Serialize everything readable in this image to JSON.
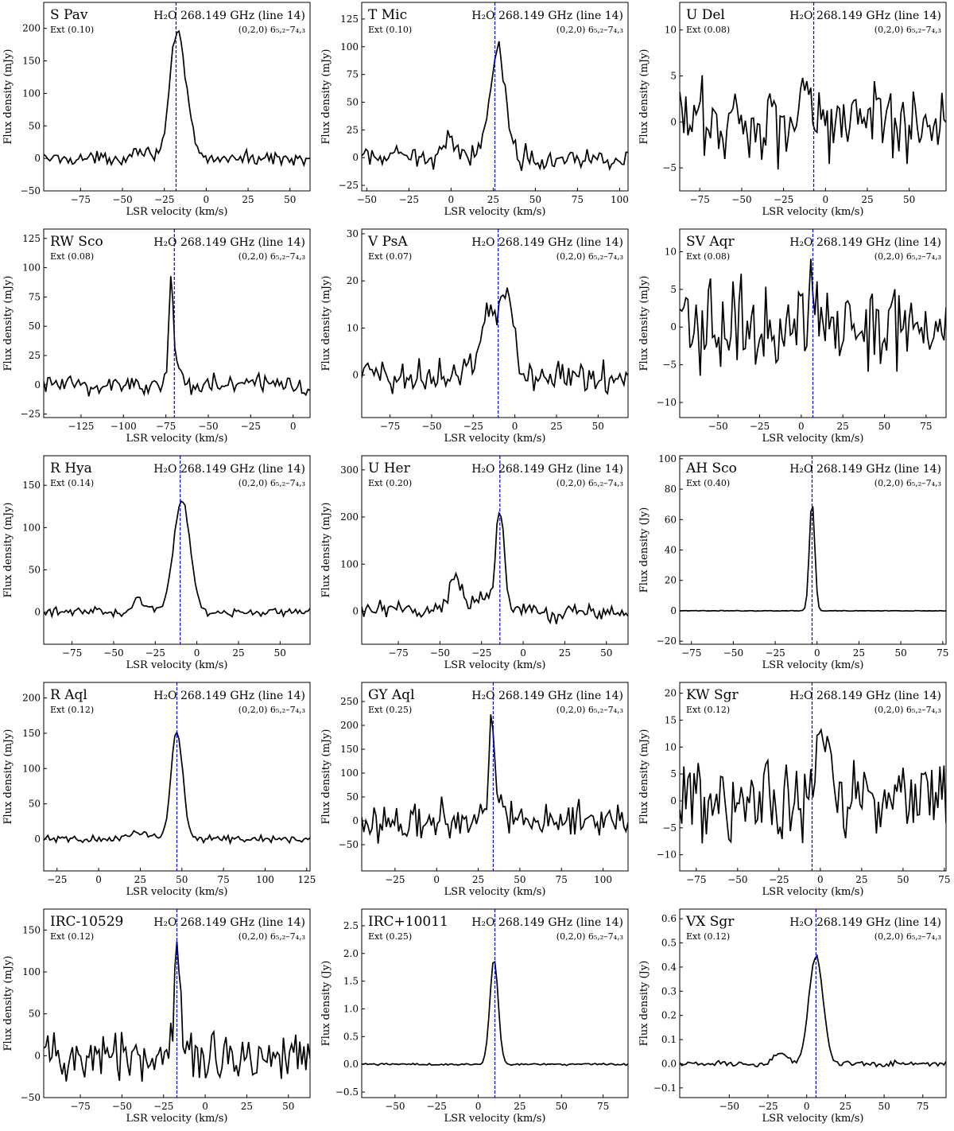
{
  "line_title": "H₂O 268.149 GHz (line 14)",
  "transition": "(0,2,0) 6₅,₂–7₄,₃",
  "xlabel": "LSR velocity (km/s)",
  "colors": {
    "spectrum": "#000000",
    "vsys_line": "#0000ff"
  },
  "chart_data": [
    {
      "type": "line",
      "star": "S Pav",
      "ext": "Ext (0.10)",
      "ylabel": "Flux density (mJy)",
      "xlim": [
        -97,
        62
      ],
      "ylim": [
        -50,
        240
      ],
      "xticks": [
        -75,
        -50,
        -25,
        0,
        25,
        50
      ],
      "yticks": [
        -50,
        0,
        50,
        100,
        150,
        200
      ],
      "vsys": -18,
      "noise": 5,
      "components": [
        [
          -18,
          4,
          170,
          -21,
          1.5
        ],
        [
          -12,
          4,
          60
        ],
        [
          -40,
          4,
          15
        ],
        [
          -30,
          3,
          8
        ]
      ]
    },
    {
      "type": "line",
      "star": "T Mic",
      "ext": "Ext (0.10)",
      "ylabel": "Flux density (mJy)",
      "xlim": [
        -53,
        105
      ],
      "ylim": [
        -30,
        140
      ],
      "xticks": [
        -50,
        -25,
        0,
        25,
        50,
        75,
        100
      ],
      "yticks": [
        -25,
        0,
        25,
        50,
        75,
        100,
        125
      ],
      "vsys": 26,
      "noise": 5,
      "components": [
        [
          28,
          4.5,
          95,
          21,
          1.3
        ],
        [
          0,
          5,
          14
        ],
        [
          20,
          4,
          10
        ]
      ]
    },
    {
      "type": "line",
      "star": "U Del",
      "ext": "Ext (0.08)",
      "ylabel": "Flux density (mJy)",
      "xlim": [
        -87,
        72
      ],
      "ylim": [
        -7.5,
        13
      ],
      "xticks": [
        -75,
        -50,
        -25,
        0,
        25,
        50
      ],
      "yticks": [
        -5,
        0,
        5,
        10
      ],
      "vsys": -7,
      "noise": 2.3,
      "components": [
        [
          -12,
          2,
          5
        ],
        [
          -3,
          3,
          2
        ]
      ]
    },
    {
      "type": "line",
      "star": "RW Sco",
      "ext": "Ext (0.08)",
      "ylabel": "Flux density (mJy)",
      "xlim": [
        -147,
        10
      ],
      "ylim": [
        -28,
        133
      ],
      "xticks": [
        -125,
        -100,
        -75,
        -50,
        -25,
        0
      ],
      "yticks": [
        -25,
        0,
        25,
        50,
        75,
        100,
        125
      ],
      "vsys": -70,
      "noise": 5,
      "components": [
        [
          -72,
          1.3,
          90
        ],
        [
          -67,
          3,
          15
        ]
      ]
    },
    {
      "type": "line",
      "star": "V PsA",
      "ext": "Ext (0.07)",
      "ylabel": "Flux density (mJy)",
      "xlim": [
        -92,
        68
      ],
      "ylim": [
        -9,
        31
      ],
      "xticks": [
        -75,
        -50,
        -25,
        0,
        25,
        50
      ],
      "yticks": [
        0,
        10,
        20,
        30
      ],
      "vsys": -10,
      "noise": 2.0,
      "components": [
        [
          -5,
          4,
          18
        ],
        [
          -16,
          5,
          12
        ]
      ]
    },
    {
      "type": "line",
      "star": "SV Aqr",
      "ext": "Ext (0.08)",
      "ylabel": "Flux density (mJy)",
      "xlim": [
        -73,
        87
      ],
      "ylim": [
        -12,
        13
      ],
      "xticks": [
        -50,
        -25,
        0,
        25,
        50,
        75
      ],
      "yticks": [
        -10,
        -5,
        0,
        5,
        10
      ],
      "vsys": 7,
      "noise": 3.0,
      "components": [
        [
          6,
          4,
          4
        ]
      ]
    },
    {
      "type": "line",
      "star": "R Hya",
      "ext": "Ext (0.14)",
      "ylabel": "Flux density (mJy)",
      "xlim": [
        -92,
        68
      ],
      "ylim": [
        -38,
        185
      ],
      "xticks": [
        -75,
        -50,
        -25,
        0,
        25,
        50
      ],
      "yticks": [
        0,
        50,
        100,
        150
      ],
      "vsys": -10,
      "noise": 2.5,
      "components": [
        [
          -9,
          5,
          132
        ],
        [
          -35,
          3,
          15
        ],
        [
          -28,
          3,
          6
        ]
      ]
    },
    {
      "type": "line",
      "star": "U Her",
      "ext": "Ext (0.20)",
      "ylabel": "Flux density (mJy)",
      "xlim": [
        -97,
        63
      ],
      "ylim": [
        -70,
        330
      ],
      "xticks": [
        -75,
        -50,
        -25,
        0,
        25,
        50
      ],
      "yticks": [
        0,
        100,
        200,
        300
      ],
      "vsys": -14,
      "noise": 10,
      "components": [
        [
          -14,
          2.5,
          225
        ],
        [
          -40,
          4,
          75
        ],
        [
          -24,
          3,
          40
        ]
      ]
    },
    {
      "type": "line",
      "star": "AH Sco",
      "ext": "Ext (0.40)",
      "ylabel": "Flux density (Jy)",
      "xlim": [
        -82,
        77
      ],
      "ylim": [
        -22,
        102
      ],
      "xticks": [
        -75,
        -50,
        -25,
        0,
        25,
        50,
        75
      ],
      "yticks": [
        -20,
        0,
        20,
        40,
        60,
        80,
        100
      ],
      "vsys": -3,
      "noise": 0.12,
      "components": [
        [
          -3,
          1.6,
          72
        ]
      ]
    },
    {
      "type": "line",
      "star": "R Aql",
      "ext": "Ext (0.12)",
      "ylabel": "Flux density (mJy)",
      "xlim": [
        -33,
        127
      ],
      "ylim": [
        -45,
        222
      ],
      "xticks": [
        -25,
        0,
        25,
        50,
        75,
        100,
        125
      ],
      "yticks": [
        0,
        50,
        100,
        150,
        200
      ],
      "vsys": 47,
      "noise": 2.5,
      "components": [
        [
          47,
          3.5,
          155,
          41,
          1.4
        ],
        [
          25,
          6,
          10
        ]
      ]
    },
    {
      "type": "line",
      "star": "GY Aql",
      "ext": "Ext (0.25)",
      "ylabel": "Flux density (mJy)",
      "xlim": [
        -45,
        115
      ],
      "ylim": [
        -105,
        290
      ],
      "xticks": [
        -25,
        0,
        25,
        50,
        75,
        100
      ],
      "yticks": [
        -50,
        0,
        50,
        100,
        150,
        200,
        250
      ],
      "vsys": 34,
      "noise": 20,
      "components": [
        [
          33,
          1.6,
          190
        ],
        [
          37,
          3,
          50
        ]
      ]
    },
    {
      "type": "line",
      "star": "KW Sgr",
      "ext": "Ext (0.12)",
      "ylabel": "Flux density (mJy)",
      "xlim": [
        -85,
        76
      ],
      "ylim": [
        -13,
        22
      ],
      "xticks": [
        -75,
        -50,
        -25,
        0,
        25,
        50,
        75
      ],
      "yticks": [
        -10,
        -5,
        0,
        5,
        10,
        15,
        20
      ],
      "vsys": -5,
      "noise": 3.6,
      "components": [
        [
          3,
          4,
          12
        ]
      ]
    },
    {
      "type": "line",
      "star": "IRC-10529",
      "ext": "Ext (0.12)",
      "ylabel": "Flux density (mJy)",
      "xlim": [
        -97,
        63
      ],
      "ylim": [
        -50,
        175
      ],
      "xticks": [
        -75,
        -50,
        -25,
        0,
        25,
        50
      ],
      "yticks": [
        -50,
        0,
        50,
        100,
        150
      ],
      "vsys": -17,
      "noise": 15,
      "components": [
        [
          -17,
          1.6,
          120
        ]
      ]
    },
    {
      "type": "line",
      "star": "IRC+10011",
      "ext": "Ext (0.25)",
      "ylabel": "Flux density (Jy)",
      "xlim": [
        -70,
        90
      ],
      "ylim": [
        -0.6,
        2.8
      ],
      "xticks": [
        -50,
        -25,
        0,
        25,
        50,
        75
      ],
      "yticks": [
        -0.5,
        0.0,
        0.5,
        1.0,
        1.5,
        2.0,
        2.5
      ],
      "vsys": 10,
      "noise": 0.01,
      "components": [
        [
          9.5,
          2.5,
          1.9,
          5,
          1.8
        ]
      ]
    },
    {
      "type": "line",
      "star": "VX Sgr",
      "ext": "Ext (0.12)",
      "ylabel": "Flux density (Jy)",
      "xlim": [
        -82,
        90
      ],
      "ylim": [
        -0.14,
        0.64
      ],
      "xticks": [
        -50,
        -25,
        0,
        25,
        50,
        75
      ],
      "yticks": [
        -0.1,
        0.0,
        0.1,
        0.2,
        0.3,
        0.4,
        0.5,
        0.6
      ],
      "vsys": 6,
      "noise": 0.006,
      "components": [
        [
          6,
          4.5,
          0.45,
          1,
          1.5
        ],
        [
          -17,
          4,
          0.05
        ]
      ]
    }
  ]
}
